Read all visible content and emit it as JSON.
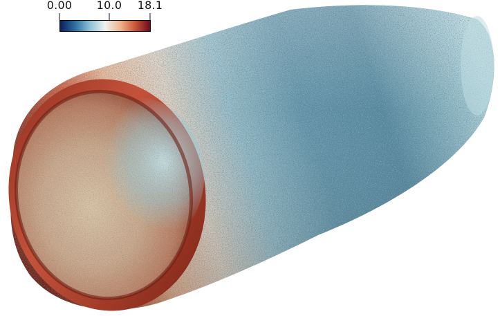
{
  "colorbar": {
    "min_label": "0.00",
    "mid_label": "10.0",
    "max_label": "18.1",
    "colors": [
      "#0d1e5a",
      "#2d6f9f",
      "#8fc2d6",
      "#eef1ec",
      "#eeb590",
      "#c95637",
      "#6b0a1d"
    ]
  },
  "render": {
    "palette": {
      "outer_red": "#b94a32",
      "inner_light": "#d8c7b3",
      "cool_blue": "#6f9cad",
      "deep_blue": "#1f4f6b",
      "highlight": "#dbe6e8"
    }
  }
}
